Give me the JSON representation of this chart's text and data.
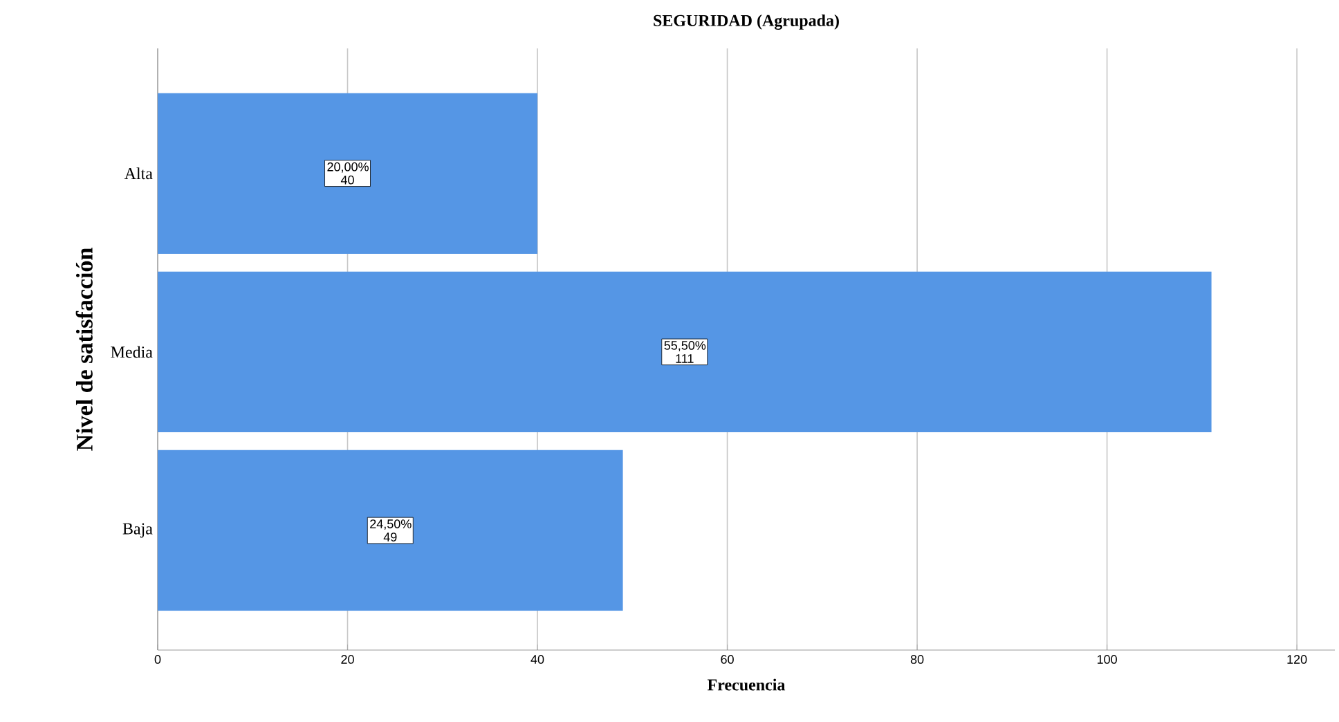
{
  "chart_data": {
    "type": "bar",
    "orientation": "horizontal",
    "title": "SEGURIDAD (Agrupada)",
    "xlabel": "Frecuencia",
    "ylabel": "Nivel de satisfacción",
    "categories": [
      "Alta",
      "Media",
      "Baja"
    ],
    "values": [
      40,
      111,
      49
    ],
    "value_labels": [
      "20,00% 40",
      "55,50% 111",
      "24,50% 49"
    ],
    "color": "#5596e5",
    "xlim": [
      0,
      124
    ],
    "xticks": [
      0,
      20,
      40,
      60,
      80,
      100,
      120
    ],
    "grid": "x"
  }
}
